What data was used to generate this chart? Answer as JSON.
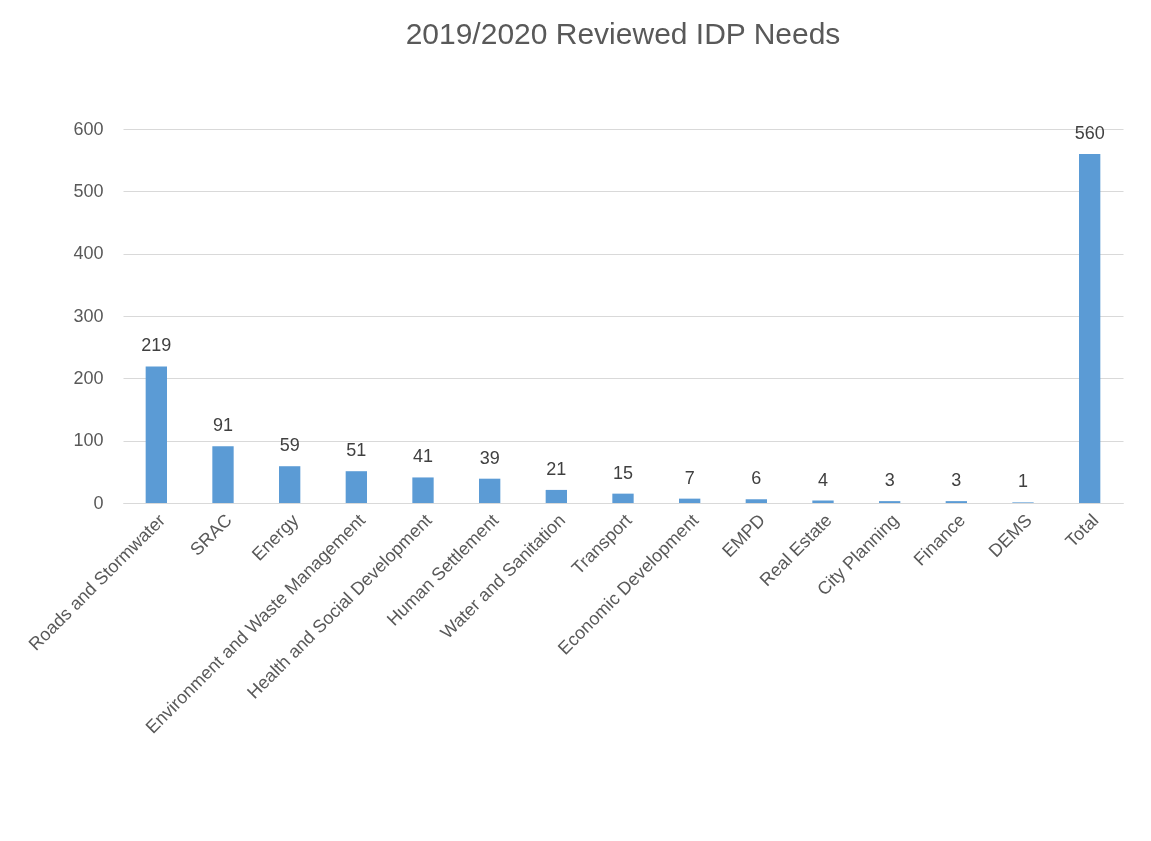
{
  "chart_data": {
    "type": "bar",
    "title": "2019/2020 Reviewed IDP Needs",
    "categories": [
      "Roads and Stormwater",
      "SRAC",
      "Energy",
      "Environment and Waste Management",
      "Health and Social Development",
      "Human Settlement",
      "Water and Sanitation",
      "Transport",
      "Economic Development",
      "EMPD",
      "Real Estate",
      "City Planning",
      "Finance",
      "DEMS",
      "Total"
    ],
    "values": [
      219,
      91,
      59,
      51,
      41,
      39,
      21,
      15,
      7,
      6,
      4,
      3,
      3,
      1,
      560
    ],
    "color": "#5b9bd5",
    "ylim": [
      0,
      600
    ],
    "yticks": [
      0,
      100,
      200,
      300,
      400,
      500,
      600
    ],
    "grid": "y",
    "data_labels": true
  }
}
